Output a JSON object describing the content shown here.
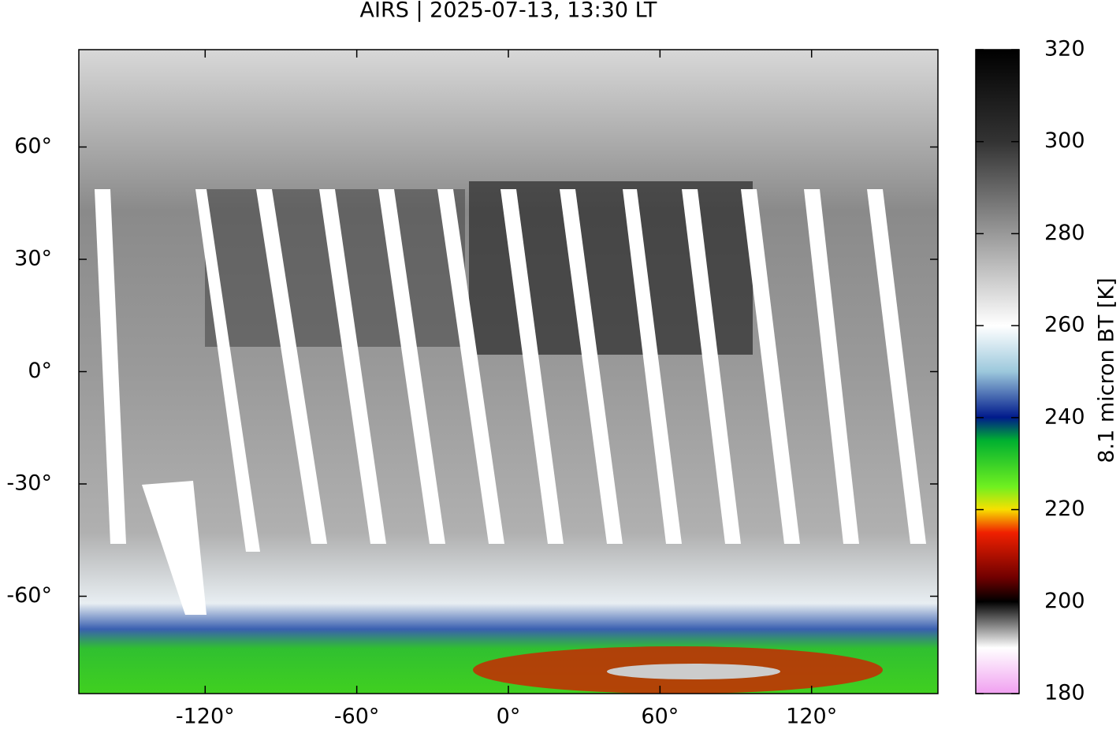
{
  "chart_data": {
    "type": "map",
    "title": "AIRS | 2025-07-13, 13:30 LT",
    "xlim": [
      -170,
      170
    ],
    "xticks": [
      {
        "value": -120,
        "label": "-120°"
      },
      {
        "value": -60,
        "label": "-60°"
      },
      {
        "value": 0,
        "label": "0°"
      },
      {
        "value": 60,
        "label": "60°"
      },
      {
        "value": 120,
        "label": "120°"
      }
    ],
    "ylim": [
      -86,
      86
    ],
    "yticks": [
      {
        "value": -60,
        "label": "-60°"
      },
      {
        "value": -30,
        "label": "-30°"
      },
      {
        "value": 0,
        "label": "0°"
      },
      {
        "value": 30,
        "label": "30°"
      },
      {
        "value": 60,
        "label": "60°"
      }
    ],
    "colorbar": {
      "label": "8.1 micron BT [K]",
      "lim": [
        180,
        320
      ],
      "ticks": [
        180,
        200,
        220,
        240,
        260,
        280,
        300,
        320
      ]
    }
  }
}
